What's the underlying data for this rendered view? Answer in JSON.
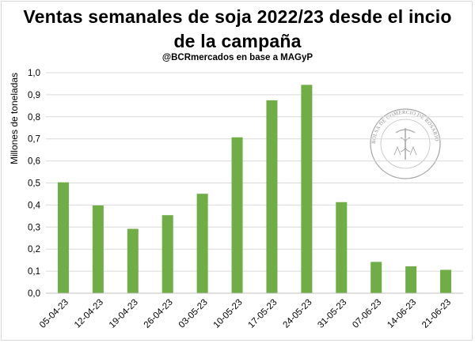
{
  "chart_data": {
    "type": "bar",
    "title_line1": "Ventas semanales de soja 2022/23 desde el incio",
    "title_line2": "de la campaña",
    "subtitle": "@BCRmercados  en base a MAGyP",
    "ylabel": "Millones de toneladas",
    "xlabel": "",
    "ylim": [
      0,
      1.0
    ],
    "yticks": [
      "0,0",
      "0,1",
      "0,2",
      "0,3",
      "0,4",
      "0,5",
      "0,6",
      "0,7",
      "0,8",
      "0,9",
      "1,0"
    ],
    "categories": [
      "05-04-23",
      "12-04-23",
      "19-04-23",
      "26-04-23",
      "03-05-23",
      "10-05-23",
      "17-05-23",
      "24-05-23",
      "31-05-23",
      "07-06-23",
      "14-06-23",
      "21-06-23"
    ],
    "values": [
      0.503,
      0.398,
      0.292,
      0.354,
      0.451,
      0.707,
      0.875,
      0.945,
      0.413,
      0.142,
      0.122,
      0.106
    ],
    "bar_color": "#70ad47",
    "grid": true,
    "legend": "none",
    "watermark_text": "BOLSA DE COMERCIO DE ROSARIO"
  }
}
